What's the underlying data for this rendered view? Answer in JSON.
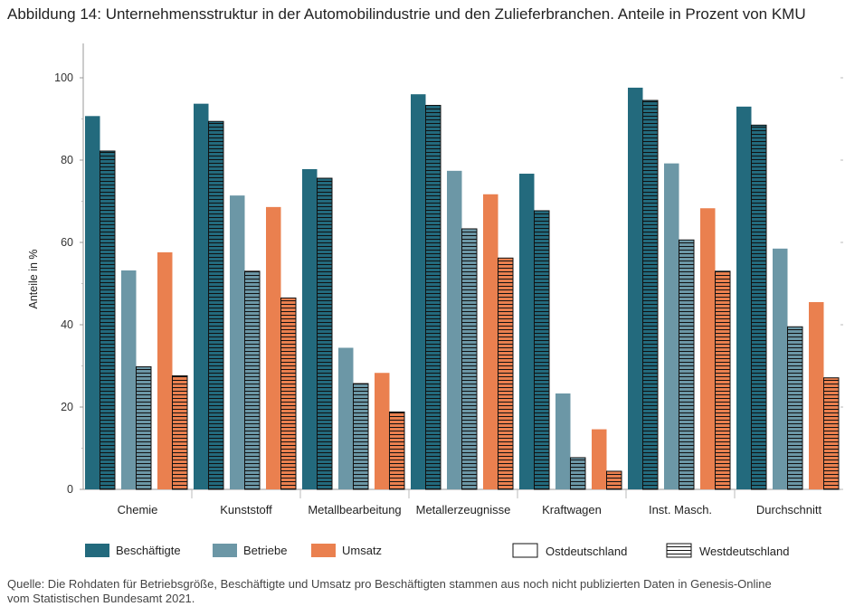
{
  "title": "Abbildung 14: Unternehmensstruktur in der Automobilindustrie und den Zulieferbranchen. Anteile in Prozent von KMU",
  "source": {
    "line1": "Quelle: Die Rohdaten für Betriebsgröße, Beschäftigte und Umsatz pro Beschäftigten stammen aus noch nicht publizierten Daten in Genesis-Online",
    "line2": "vom Statistischen Bundesamt 2021."
  },
  "colors": {
    "Beschäftigte": "#236a7d",
    "Betriebe": "#6c97a6",
    "Umsatz": "#ea804f"
  },
  "chart_data": {
    "type": "bar",
    "ylabel": "Anteile in %",
    "ylim": [
      0,
      110
    ],
    "yticks": [
      0,
      20,
      40,
      60,
      80,
      100
    ],
    "grid": false,
    "legend_position": "bottom",
    "categories": [
      "Chemie",
      "Kunststoff",
      "Metallbearbeitung",
      "Metallerzeugnisse",
      "Kraftwagen",
      "Inst. Masch.",
      "Durchschnitt"
    ],
    "legend": {
      "measures": [
        "Beschäftigte",
        "Betriebe",
        "Umsatz"
      ],
      "regions": [
        "Ostdeutschland",
        "Westdeutschland"
      ]
    },
    "series": [
      {
        "name": "Beschäftigte",
        "region": "Ostdeutschland",
        "values": [
          90.7,
          93.7,
          77.8,
          96.0,
          76.7,
          97.6,
          93.0
        ]
      },
      {
        "name": "Beschäftigte",
        "region": "Westdeutschland",
        "values": [
          82.2,
          89.4,
          75.6,
          93.3,
          67.7,
          94.5,
          88.5
        ]
      },
      {
        "name": "Betriebe",
        "region": "Ostdeutschland",
        "values": [
          53.2,
          71.4,
          34.4,
          77.4,
          23.3,
          79.2,
          58.5
        ]
      },
      {
        "name": "Betriebe",
        "region": "Westdeutschland",
        "values": [
          29.8,
          53.0,
          25.7,
          63.3,
          7.7,
          60.6,
          39.5
        ]
      },
      {
        "name": "Umsatz",
        "region": "Ostdeutschland",
        "values": [
          57.6,
          68.6,
          28.3,
          71.7,
          14.6,
          68.3,
          45.5
        ]
      },
      {
        "name": "Umsatz",
        "region": "Westdeutschland",
        "values": [
          27.6,
          46.5,
          18.8,
          56.2,
          4.4,
          53.0,
          27.1
        ]
      }
    ]
  }
}
